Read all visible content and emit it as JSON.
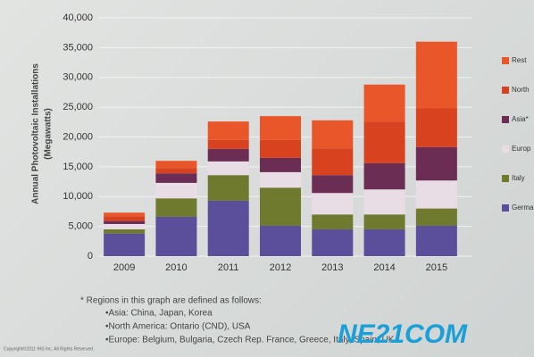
{
  "chart_data": {
    "type": "stacked-bar",
    "y_label": "Annual Photovoltaic Installations",
    "y_label_unit": "(Megawatts)",
    "categories": [
      "2009",
      "2010",
      "2011",
      "2012",
      "2013",
      "2014",
      "2015"
    ],
    "series": [
      {
        "name": "Germa",
        "color": "#5b4f9c",
        "values": [
          3800,
          6600,
          9300,
          5100,
          4500,
          4500,
          5100
        ]
      },
      {
        "name": "Italy",
        "color": "#6f7a2f",
        "values": [
          700,
          3100,
          4300,
          6400,
          2500,
          2500,
          2900
        ]
      },
      {
        "name": "Europ",
        "color": "#e9dde5",
        "values": [
          900,
          2600,
          2300,
          2600,
          3600,
          4200,
          4700
        ]
      },
      {
        "name": "Asia*",
        "color": "#6b2d54",
        "values": [
          500,
          1600,
          2100,
          2400,
          3000,
          4400,
          5600
        ]
      },
      {
        "name": "North",
        "color": "#d8421f",
        "values": [
          800,
          900,
          1500,
          3000,
          4500,
          7000,
          6500
        ]
      },
      {
        "name": "Rest",
        "color": "#e8562a",
        "values": [
          600,
          1200,
          3100,
          4000,
          4700,
          6200,
          11200
        ]
      }
    ],
    "ylim": [
      0,
      40000
    ],
    "yticks": [
      0,
      {
        "value": 5000,
        "label": "5,000"
      },
      {
        "value": 10000,
        "label": "10,000"
      },
      {
        "value": 15000,
        "label": "15,000"
      },
      {
        "value": 20000,
        "label": "20,000"
      },
      {
        "value": 25000,
        "label": "25,000"
      },
      {
        "value": 30000,
        "label": "30,000"
      },
      {
        "value": 35000,
        "label": "35,000"
      },
      {
        "value": 40000,
        "label": "40,000"
      }
    ],
    "grid": true
  },
  "footnote": [
    "* Regions in this graph are defined as follows:",
    "•Asia: China, Japan, Korea",
    "•North America: Ontario (CND), USA",
    "•Europe: Belgium, Bulgaria, Czech Rep. France, Greece, Italy, Spain, UK"
  ],
  "copyright": "Copyright©2011 IHS Inc. All Rights Reserved.",
  "watermark": "NE21COM"
}
